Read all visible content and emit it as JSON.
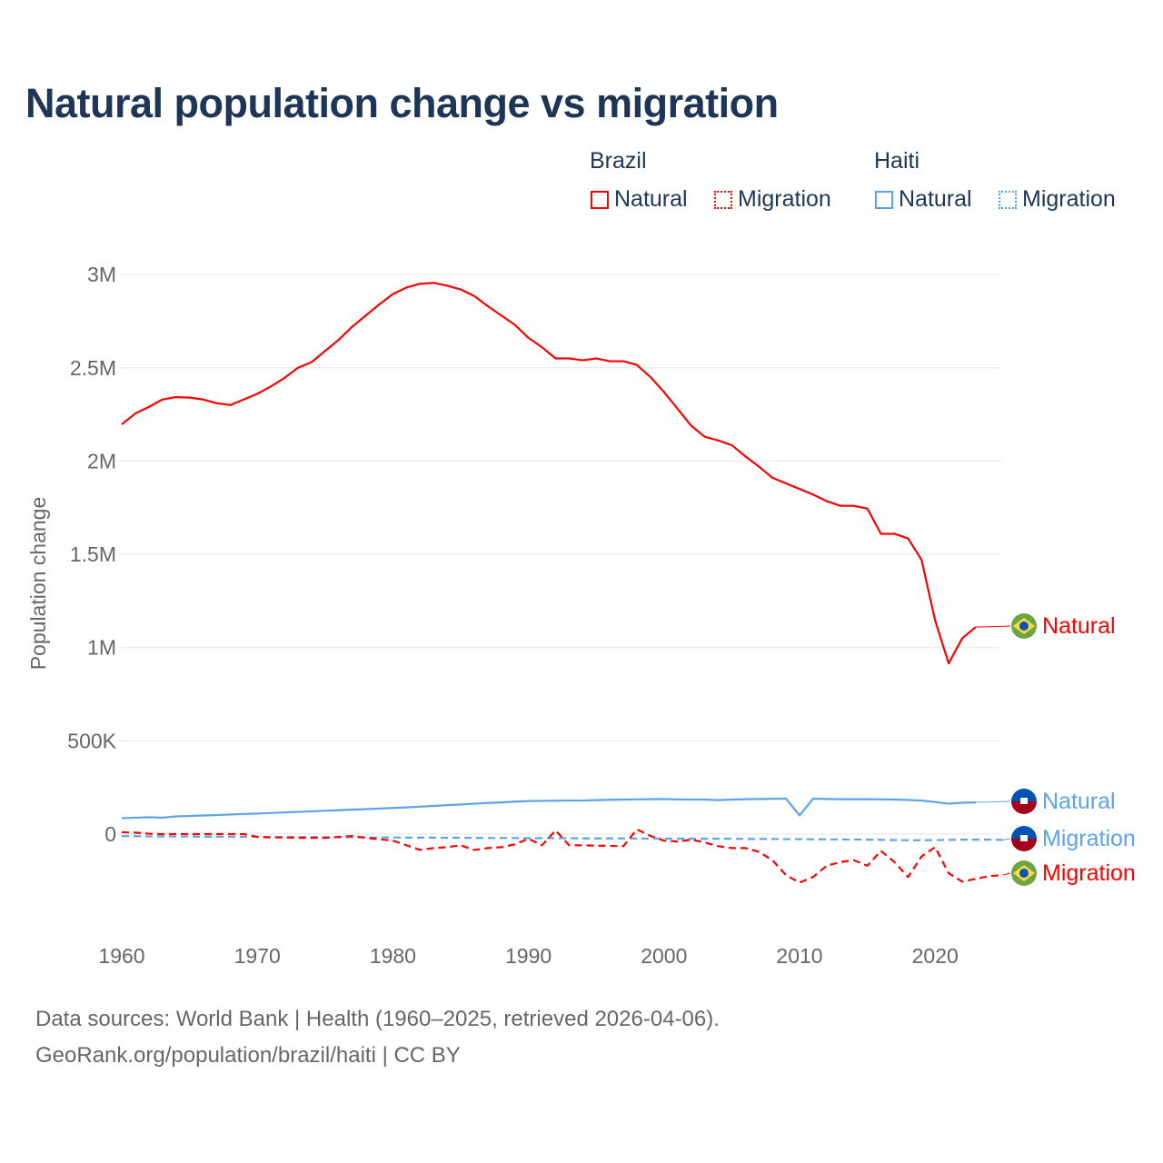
{
  "chart_data": {
    "type": "line",
    "title": "Natural population change vs migration",
    "ylabel": "Population change",
    "xlabel": "",
    "xlim": [
      1960,
      2025
    ],
    "ylim": [
      -500000,
      3000000
    ],
    "x_ticks": [
      "1960",
      "1970",
      "1980",
      "1990",
      "2000",
      "2010",
      "2020"
    ],
    "y_ticks": [
      {
        "v": 0,
        "label": "0"
      },
      {
        "v": 500000,
        "label": "500K"
      },
      {
        "v": 1000000,
        "label": "1M"
      },
      {
        "v": 1500000,
        "label": "1.5M"
      },
      {
        "v": 2000000,
        "label": "2M"
      },
      {
        "v": 2500000,
        "label": "2.5M"
      },
      {
        "v": 3000000,
        "label": "3M"
      }
    ],
    "grid": true,
    "legend": {
      "groups": [
        {
          "name": "Brazil",
          "items": [
            "Natural",
            "Migration"
          ]
        },
        {
          "name": "Haiti",
          "items": [
            "Natural",
            "Migration"
          ]
        }
      ],
      "placement": "top-right"
    },
    "series": [
      {
        "name": "Natural",
        "country": "Brazil",
        "color": "#ff0000",
        "style": "solid",
        "start": 1960,
        "values": [
          2197,
          2255,
          2290,
          2330,
          2343,
          2340,
          2330,
          2310,
          2300,
          2330,
          2360,
          2400,
          2445,
          2500,
          2530,
          2590,
          2650,
          2720,
          2780,
          2840,
          2895,
          2930,
          2950,
          2955,
          2940,
          2920,
          2885,
          2830,
          2780,
          2730,
          2660,
          2610,
          2550,
          2550,
          2540,
          2550,
          2535,
          2535,
          2515,
          2450,
          2370,
          2280,
          2190,
          2130,
          2110,
          2085,
          2025,
          1970,
          1910,
          1880,
          1850,
          1820,
          1785,
          1760,
          1760,
          1745,
          1610,
          1610,
          1585,
          1470,
          1145,
          915,
          1050,
          1110
        ]
      },
      {
        "name": "Migration",
        "country": "Brazil",
        "color": "#ff0000",
        "style": "dashed",
        "start": 1960,
        "values": [
          10,
          8,
          2,
          0,
          0,
          0,
          0,
          0,
          0,
          0,
          -15,
          -18,
          -18,
          -20,
          -20,
          -20,
          -15,
          -10,
          -20,
          -28,
          -35,
          -60,
          -85,
          -75,
          -70,
          -60,
          -85,
          -75,
          -70,
          -55,
          -25,
          -60,
          20,
          -60,
          -60,
          -62,
          -63,
          -65,
          25,
          -10,
          -35,
          -40,
          -30,
          -45,
          -65,
          -75,
          -75,
          -95,
          -140,
          -220,
          -260,
          -230,
          -170,
          -150,
          -140,
          -170,
          -90,
          -150,
          -230,
          -120,
          -70,
          -210,
          -255,
          -240,
          -225,
          -220
        ]
      },
      {
        "name": "Natural",
        "country": "Haiti",
        "color": "#5ba3e8",
        "style": "solid",
        "start": 1960,
        "values": [
          85,
          88,
          90,
          88,
          95,
          97,
          100,
          102,
          105,
          108,
          110,
          113,
          116,
          119,
          122,
          125,
          128,
          131,
          134,
          137,
          140,
          143,
          147,
          151,
          155,
          159,
          163,
          167,
          170,
          174,
          177,
          178,
          179,
          180,
          180,
          182,
          184,
          185,
          186,
          187,
          188,
          186,
          185,
          185,
          182,
          185,
          187,
          188,
          189,
          190,
          100,
          190,
          188,
          187,
          187,
          187,
          186,
          185,
          183,
          180,
          172,
          163,
          168,
          170
        ]
      },
      {
        "name": "Migration",
        "country": "Haiti",
        "color": "#5ba3e8",
        "style": "dashed",
        "start": 1960,
        "values": [
          -10,
          -11,
          -12,
          -12,
          -13,
          -13,
          -14,
          -14,
          -14,
          -15,
          -15,
          -15,
          -16,
          -16,
          -16,
          -17,
          -17,
          -17,
          -18,
          -18,
          -18,
          -19,
          -19,
          -19,
          -20,
          -20,
          -20,
          -21,
          -21,
          -21,
          -22,
          -22,
          -22,
          -22,
          -23,
          -23,
          -23,
          -23,
          -24,
          -24,
          -24,
          -24,
          -25,
          -25,
          -25,
          -25,
          -26,
          -26,
          -26,
          -27,
          -27,
          -28,
          -28,
          -29,
          -29,
          -30,
          -31,
          -32,
          -33,
          -33,
          -32,
          -31,
          -30,
          -30,
          -30,
          -31
        ]
      }
    ],
    "end_labels": [
      {
        "text": "Natural",
        "country": "Brazil",
        "color": "#ff0000"
      },
      {
        "text": "Natural",
        "country": "Haiti",
        "color": "#5ba3e8"
      },
      {
        "text": "Migration",
        "country": "Haiti",
        "color": "#5ba3e8"
      },
      {
        "text": "Migration",
        "country": "Brazil",
        "color": "#ff0000"
      }
    ],
    "value_unit": "thousands"
  },
  "footer": {
    "line1": "Data sources: World Bank | Health (1960–2025, retrieved 2026-04-06).",
    "line2": "GeoRank.org/population/brazil/haiti | CC BY"
  }
}
